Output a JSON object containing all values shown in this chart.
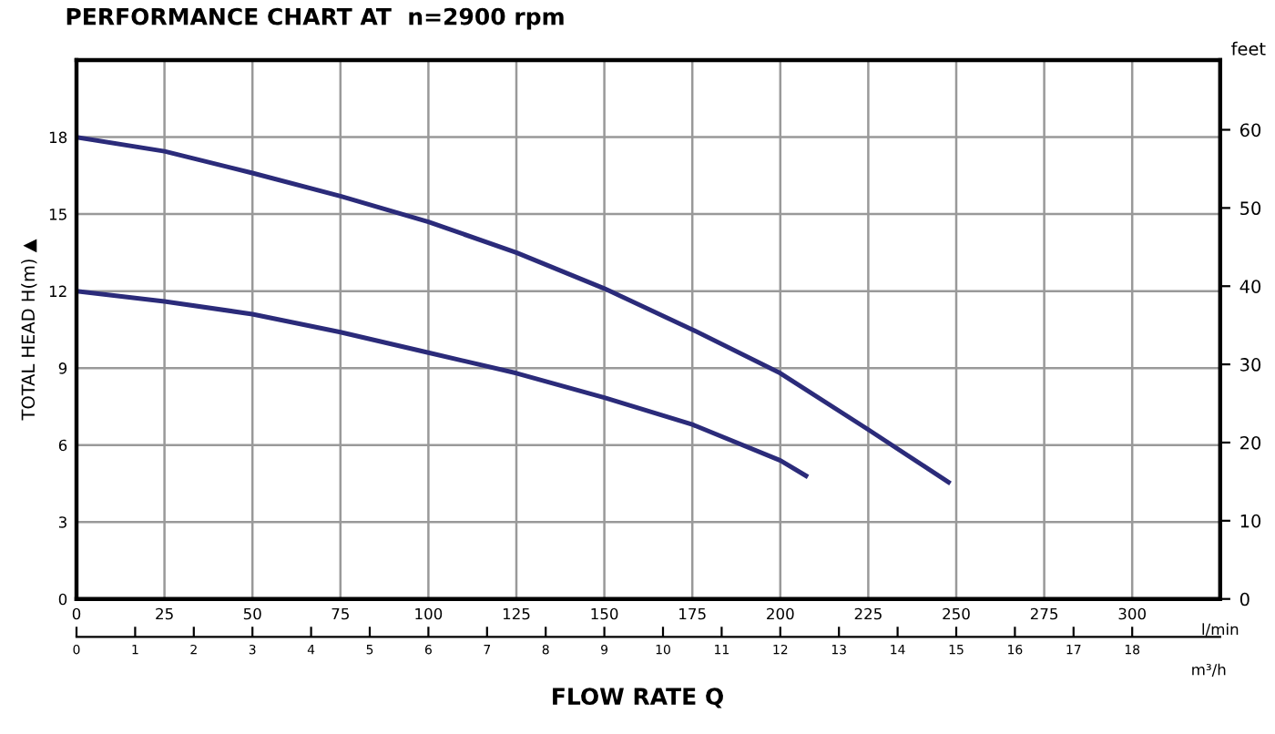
{
  "chart_data": {
    "type": "line",
    "title": "PERFORMANCE CHART AT  n=2900 rpm",
    "xlabel": "l/min",
    "ylabel": "TOTAL HEAD H(m) ▲",
    "y2label": "feet",
    "x2label": "m³/h",
    "annotations": [
      "FLOW RATE Q"
    ],
    "xlim": [
      0,
      325
    ],
    "xticks": [
      0,
      25,
      50,
      75,
      100,
      125,
      150,
      175,
      200,
      225,
      250,
      275,
      300
    ],
    "ylim": [
      0,
      21
    ],
    "yticks": [
      0,
      3,
      6,
      9,
      12,
      15,
      18
    ],
    "y2lim": [
      0,
      68.9
    ],
    "y2ticks": [
      0,
      10,
      20,
      30,
      40,
      50,
      60
    ],
    "x2lim": [
      0,
      19.5
    ],
    "x2ticks": [
      0,
      1,
      2,
      3,
      4,
      5,
      6,
      7,
      8,
      9,
      10,
      11,
      12,
      13,
      14,
      15,
      16,
      17,
      18
    ],
    "grid": true,
    "marker": "none",
    "line_style": "solid",
    "series": [
      {
        "color": "#2b2b7a",
        "x": [
          0,
          25,
          50,
          75,
          100,
          125,
          150,
          175,
          200,
          225,
          247.8
        ],
        "values": [
          18,
          17.45,
          16.6,
          15.7,
          14.7,
          13.5,
          12.1,
          10.5,
          8.8,
          6.6,
          4.55
        ]
      },
      {
        "color": "#2b2b7a",
        "x": [
          0,
          25,
          50,
          75,
          100,
          125,
          150,
          175,
          200,
          207.3
        ],
        "values": [
          12,
          11.6,
          11.1,
          10.4,
          9.6,
          8.8,
          7.85,
          6.8,
          5.4,
          4.8
        ]
      }
    ]
  }
}
